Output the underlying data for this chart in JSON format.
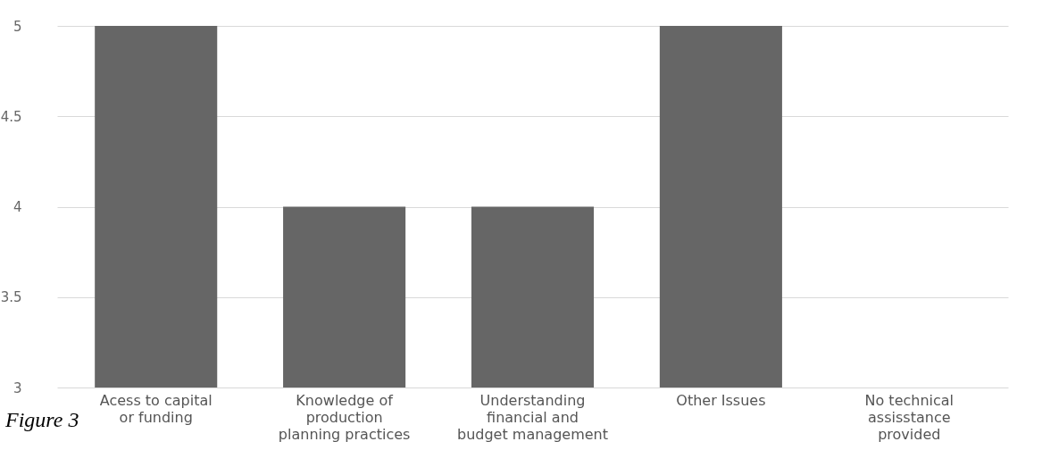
{
  "chart_data": {
    "type": "bar",
    "categories": [
      "Acess to capital or funding",
      "Knowledge of production planning practices",
      "Understanding financial and budget management",
      "Other Issues",
      "No technical assisstance provided"
    ],
    "values": [
      5,
      4,
      4,
      5,
      3
    ],
    "color": "#666666",
    "ylim": [
      3,
      5
    ],
    "yticks": [
      3,
      3.5,
      4,
      4.5,
      5
    ],
    "grid": "y",
    "annotations": [
      "Figure 3"
    ]
  }
}
